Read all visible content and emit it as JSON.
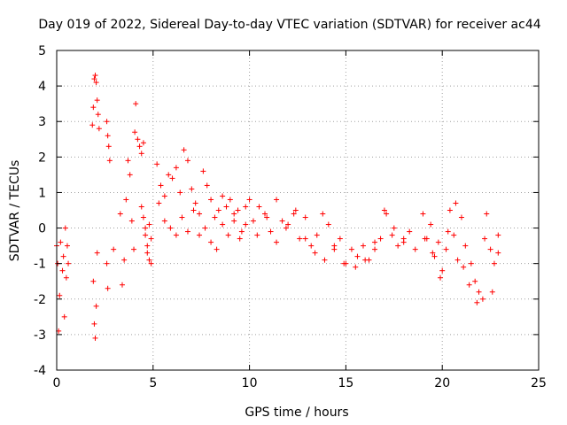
{
  "chart_data": {
    "type": "scatter",
    "title": "Day 019 of 2022, Sidereal Day-to-day VTEC variation (SDTVAR) for receiver ac44",
    "xlabel": "GPS time / hours",
    "ylabel": "SDTVAR / TECUs",
    "xlim": [
      0,
      25
    ],
    "ylim": [
      -4,
      5
    ],
    "xticks": [
      0,
      5,
      10,
      15,
      20,
      25
    ],
    "yticks": [
      -4,
      -3,
      -2,
      -1,
      0,
      1,
      2,
      3,
      4,
      5
    ],
    "grid": true,
    "marker": "+",
    "color": "#ff0000",
    "series": [
      {
        "name": "SDTVAR",
        "x": [
          0.0,
          0.05,
          0.1,
          0.15,
          0.2,
          0.3,
          0.35,
          0.4,
          0.45,
          0.5,
          0.55,
          0.6,
          1.85,
          1.9,
          1.95,
          2.0,
          2.05,
          2.1,
          2.15,
          2.2,
          1.9,
          1.95,
          2.0,
          2.05,
          2.1,
          2.6,
          2.65,
          2.7,
          2.75,
          2.6,
          2.65,
          2.95,
          3.3,
          3.4,
          3.5,
          3.6,
          3.7,
          3.8,
          3.9,
          4.0,
          4.05,
          4.1,
          4.2,
          4.3,
          4.4,
          4.5,
          4.6,
          4.7,
          4.8,
          4.9,
          4.4,
          4.5,
          4.6,
          4.7,
          4.8,
          4.9,
          5.2,
          5.4,
          5.6,
          5.8,
          6.0,
          6.2,
          6.4,
          6.6,
          6.8,
          7.0,
          7.2,
          7.4,
          7.6,
          7.8,
          8.0,
          8.2,
          8.4,
          8.6,
          8.8,
          9.0,
          9.2,
          9.4,
          9.6,
          9.8,
          10.0,
          5.3,
          5.6,
          5.9,
          6.2,
          6.5,
          6.8,
          7.1,
          7.4,
          7.7,
          8.0,
          8.3,
          8.6,
          8.9,
          9.2,
          9.5,
          9.8,
          10.2,
          10.5,
          10.8,
          11.1,
          11.4,
          11.7,
          12.0,
          12.3,
          12.6,
          12.9,
          13.2,
          13.5,
          13.8,
          14.1,
          14.4,
          14.7,
          15.0,
          10.4,
          10.9,
          11.4,
          11.9,
          12.4,
          12.9,
          13.4,
          13.9,
          14.4,
          14.9,
          15.3,
          15.6,
          15.9,
          16.2,
          16.5,
          16.8,
          17.1,
          17.4,
          17.7,
          18.0,
          18.3,
          18.6,
          15.5,
          16.0,
          16.5,
          17.0,
          17.5,
          18.0,
          19.0,
          19.2,
          19.4,
          19.6,
          19.8,
          20.0,
          20.2,
          20.4,
          20.6,
          20.8,
          21.0,
          21.2,
          19.1,
          19.5,
          19.9,
          20.3,
          20.7,
          21.1,
          21.5,
          21.7,
          21.9,
          22.1,
          22.3,
          22.5,
          22.7,
          22.9,
          21.4,
          21.8,
          22.2,
          22.6,
          22.9
        ],
        "y": [
          -0.5,
          -1.0,
          -2.9,
          -1.9,
          -0.4,
          -1.2,
          -0.8,
          -2.5,
          0.0,
          -1.4,
          -0.5,
          -1.0,
          2.9,
          3.4,
          4.2,
          4.3,
          4.1,
          3.6,
          3.2,
          2.8,
          -1.5,
          -2.7,
          -3.1,
          -2.2,
          -0.7,
          3.0,
          2.6,
          2.3,
          1.9,
          -1.0,
          -1.7,
          -0.6,
          0.4,
          -1.6,
          -0.9,
          0.8,
          1.9,
          1.5,
          0.2,
          -0.6,
          2.7,
          3.5,
          2.5,
          2.3,
          2.1,
          2.4,
          0.0,
          -0.5,
          -0.9,
          -1.0,
          0.6,
          0.3,
          -0.2,
          -0.7,
          0.1,
          -0.3,
          1.8,
          1.2,
          0.9,
          1.5,
          1.4,
          1.7,
          1.0,
          2.2,
          1.9,
          1.1,
          0.7,
          0.4,
          1.6,
          1.2,
          0.8,
          0.3,
          0.5,
          0.9,
          0.6,
          0.8,
          0.2,
          0.5,
          -0.1,
          0.6,
          0.8,
          0.7,
          0.2,
          0.0,
          -0.2,
          0.3,
          -0.1,
          0.5,
          -0.2,
          0.0,
          -0.4,
          -0.6,
          0.1,
          -0.2,
          0.4,
          -0.3,
          0.1,
          0.2,
          0.6,
          0.4,
          -0.1,
          0.8,
          0.2,
          0.1,
          0.4,
          -0.3,
          0.3,
          -0.5,
          -0.2,
          0.4,
          0.1,
          -0.6,
          -0.3,
          -1.0,
          -0.2,
          0.3,
          -0.4,
          0.0,
          0.5,
          -0.3,
          -0.7,
          -0.9,
          -0.5,
          -1.0,
          -0.6,
          -0.8,
          -0.5,
          -0.9,
          -0.4,
          -0.3,
          0.4,
          -0.2,
          -0.5,
          -0.4,
          -0.1,
          -0.6,
          -1.1,
          -0.9,
          -0.6,
          0.5,
          0.0,
          -0.3,
          0.4,
          -0.3,
          0.1,
          -0.8,
          -0.4,
          -1.2,
          -0.6,
          0.5,
          -0.2,
          -0.9,
          0.3,
          -0.5,
          -0.3,
          -0.7,
          -1.4,
          -0.1,
          0.7,
          -1.1,
          -1.0,
          -1.5,
          -1.8,
          -2.0,
          0.4,
          -0.6,
          -1.0,
          -0.7,
          -1.6,
          -2.1,
          -0.3,
          -1.8,
          -0.2
        ]
      }
    ]
  }
}
